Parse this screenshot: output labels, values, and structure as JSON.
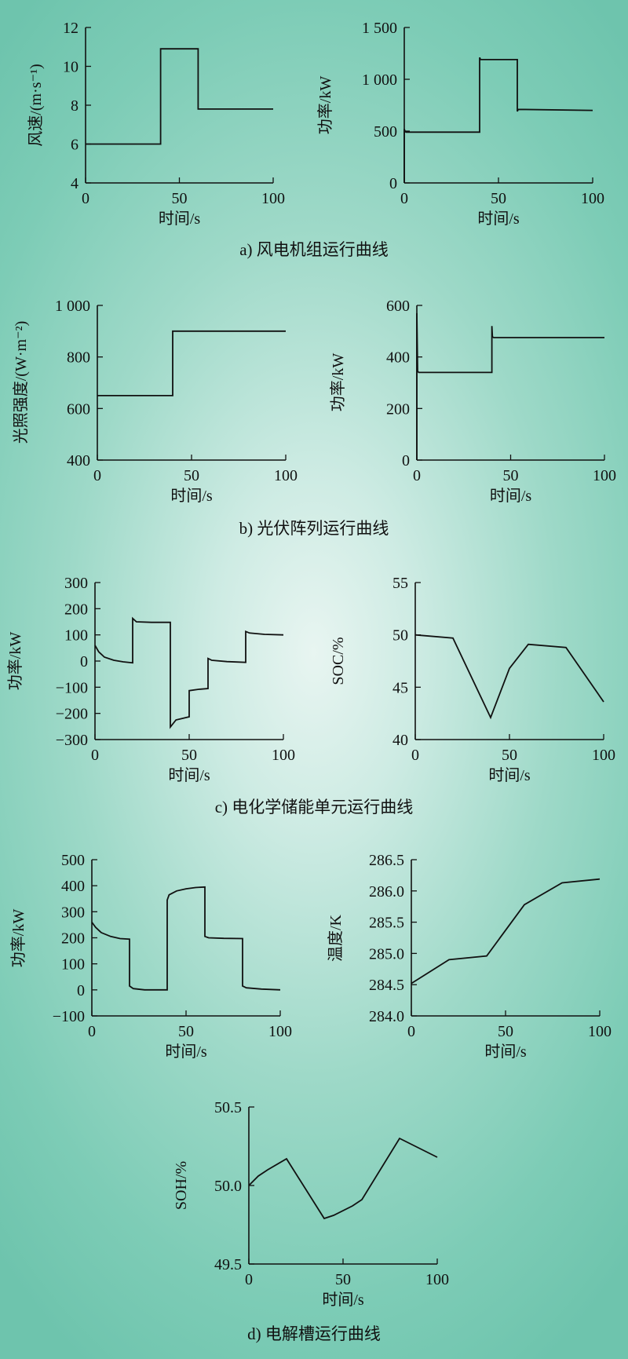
{
  "captions": {
    "a": "a) 风电机组运行曲线",
    "b": "b) 光伏阵列运行曲线",
    "c": "c) 电化学储能单元运行曲线",
    "d": "d) 电解槽运行曲线"
  },
  "chart_data": [
    {
      "id": "a-wind-speed",
      "type": "line",
      "xlabel": "时间/s",
      "ylabel": "风速/(m·s⁻¹)",
      "xlim": [
        0,
        100
      ],
      "ylim": [
        4,
        12
      ],
      "xticks": [
        0,
        50,
        100
      ],
      "xtick_labels": [
        "0",
        "50",
        "100"
      ],
      "yticks": [
        4,
        6,
        8,
        10,
        12
      ],
      "ytick_labels": [
        "4",
        "6",
        "8",
        "10",
        "12"
      ],
      "series": [
        {
          "x": [
            0,
            40,
            40,
            60,
            60,
            100
          ],
          "y": [
            6.0,
            6.0,
            10.9,
            10.9,
            7.8,
            7.8
          ]
        }
      ]
    },
    {
      "id": "a-wind-power",
      "type": "line",
      "xlabel": "时间/s",
      "ylabel": "功率/kW",
      "xlim": [
        0,
        100
      ],
      "ylim": [
        0,
        1500
      ],
      "xticks": [
        0,
        50,
        100
      ],
      "xtick_labels": [
        "0",
        "50",
        "100"
      ],
      "yticks": [
        0,
        500,
        1000,
        1500
      ],
      "ytick_labels": [
        "0",
        "500",
        "1 000",
        "1 500"
      ],
      "series": [
        {
          "x": [
            0,
            0,
            0.5,
            1,
            40,
            40,
            40.5,
            60,
            60,
            60.5,
            100
          ],
          "y": [
            0,
            520,
            495,
            490,
            490,
            1210,
            1190,
            1190,
            690,
            710,
            700
          ]
        }
      ]
    },
    {
      "id": "b-irradiance",
      "type": "line",
      "xlabel": "时间/s",
      "ylabel": "光照强度/(W·m⁻²)",
      "xlim": [
        0,
        100
      ],
      "ylim": [
        400,
        1000
      ],
      "xticks": [
        0,
        50,
        100
      ],
      "xtick_labels": [
        "0",
        "50",
        "100"
      ],
      "yticks": [
        400,
        600,
        800,
        1000
      ],
      "ytick_labels": [
        "400",
        "600",
        "800",
        "1 000"
      ],
      "series": [
        {
          "x": [
            0,
            40,
            40,
            100
          ],
          "y": [
            650,
            650,
            900,
            900
          ]
        }
      ]
    },
    {
      "id": "b-pv-power",
      "type": "line",
      "xlabel": "时间/s",
      "ylabel": "功率/kW",
      "xlim": [
        0,
        100
      ],
      "ylim": [
        0,
        600
      ],
      "xticks": [
        0,
        50,
        100
      ],
      "xtick_labels": [
        "0",
        "50",
        "100"
      ],
      "yticks": [
        0,
        200,
        400,
        600
      ],
      "ytick_labels": [
        "0",
        "200",
        "400",
        "600"
      ],
      "series": [
        {
          "x": [
            0,
            0,
            0.4,
            1,
            40,
            40,
            40.3,
            41,
            100
          ],
          "y": [
            0,
            570,
            345,
            340,
            340,
            520,
            478,
            475,
            475
          ]
        }
      ]
    },
    {
      "id": "c-ess-power",
      "type": "line",
      "xlabel": "时间/s",
      "ylabel": "功率/kW",
      "xlim": [
        0,
        100
      ],
      "ylim": [
        -300,
        300
      ],
      "xticks": [
        0,
        50,
        100
      ],
      "xtick_labels": [
        "0",
        "50",
        "100"
      ],
      "yticks": [
        -300,
        -200,
        -100,
        0,
        100,
        200,
        300
      ],
      "ytick_labels": [
        "−300",
        "−200",
        "−100",
        "0",
        "100",
        "200",
        "300"
      ],
      "series": [
        {
          "x": [
            0,
            2,
            5,
            10,
            15,
            20,
            20,
            22,
            30,
            40,
            40,
            43,
            50,
            50,
            55,
            60,
            60,
            62,
            70,
            80,
            80,
            82,
            90,
            100
          ],
          "y": [
            60,
            35,
            15,
            3,
            -3,
            -7,
            163,
            150,
            148,
            148,
            -252,
            -225,
            -213,
            -113,
            -108,
            -105,
            10,
            3,
            -2,
            -5,
            113,
            107,
            102,
            100
          ]
        }
      ]
    },
    {
      "id": "c-soc",
      "type": "line",
      "xlabel": "时间/s",
      "ylabel": "SOC/%",
      "xlim": [
        0,
        100
      ],
      "ylim": [
        40,
        55
      ],
      "xticks": [
        0,
        50,
        100
      ],
      "xtick_labels": [
        "0",
        "50",
        "100"
      ],
      "yticks": [
        40,
        45,
        50,
        55
      ],
      "ytick_labels": [
        "40",
        "45",
        "50",
        "55"
      ],
      "series": [
        {
          "x": [
            0,
            20,
            40,
            50,
            60,
            80,
            100
          ],
          "y": [
            50.0,
            49.7,
            42.1,
            46.8,
            49.1,
            48.8,
            43.6
          ]
        }
      ]
    },
    {
      "id": "d-electrolyzer-power",
      "type": "line",
      "xlabel": "时间/s",
      "ylabel": "功率/kW",
      "xlim": [
        0,
        100
      ],
      "ylim": [
        -100,
        500
      ],
      "xticks": [
        0,
        50,
        100
      ],
      "xtick_labels": [
        "0",
        "50",
        "100"
      ],
      "yticks": [
        -100,
        0,
        100,
        200,
        300,
        400,
        500
      ],
      "ytick_labels": [
        "−100",
        "0",
        "100",
        "200",
        "300",
        "400",
        "500"
      ],
      "series": [
        {
          "x": [
            0,
            2,
            5,
            10,
            15,
            20,
            20,
            22,
            28,
            40,
            40,
            41,
            45,
            50,
            55,
            60,
            60,
            62,
            70,
            80,
            80,
            82,
            90,
            100
          ],
          "y": [
            260,
            240,
            220,
            205,
            197,
            195,
            15,
            5,
            0,
            0,
            345,
            365,
            380,
            388,
            393,
            395,
            205,
            200,
            198,
            197,
            15,
            8,
            3,
            0
          ]
        }
      ]
    },
    {
      "id": "d-temperature",
      "type": "line",
      "xlabel": "时间/s",
      "ylabel": "温度/K",
      "xlim": [
        0,
        100
      ],
      "ylim": [
        284.0,
        286.5
      ],
      "xticks": [
        0,
        50,
        100
      ],
      "xtick_labels": [
        "0",
        "50",
        "100"
      ],
      "yticks": [
        284.0,
        284.5,
        285.0,
        285.5,
        286.0,
        286.5
      ],
      "ytick_labels": [
        "284.0",
        "284.5",
        "285.0",
        "285.5",
        "286.0",
        "286.5"
      ],
      "series": [
        {
          "x": [
            0,
            20,
            40,
            60,
            80,
            100
          ],
          "y": [
            284.52,
            284.9,
            284.96,
            285.78,
            286.13,
            286.19
          ]
        }
      ]
    },
    {
      "id": "d-soh",
      "type": "line",
      "xlabel": "时间/s",
      "ylabel": "SOH/%",
      "xlim": [
        0,
        100
      ],
      "ylim": [
        49.5,
        50.5
      ],
      "xticks": [
        0,
        50,
        100
      ],
      "xtick_labels": [
        "0",
        "50",
        "100"
      ],
      "yticks": [
        49.5,
        50.0,
        50.5
      ],
      "ytick_labels": [
        "49.5",
        "50.0",
        "50.5"
      ],
      "series": [
        {
          "x": [
            0,
            5,
            10,
            20,
            40,
            45,
            55,
            60,
            80,
            100
          ],
          "y": [
            50.0,
            50.06,
            50.1,
            50.17,
            49.79,
            49.81,
            49.87,
            49.91,
            50.3,
            50.18
          ]
        }
      ]
    }
  ]
}
